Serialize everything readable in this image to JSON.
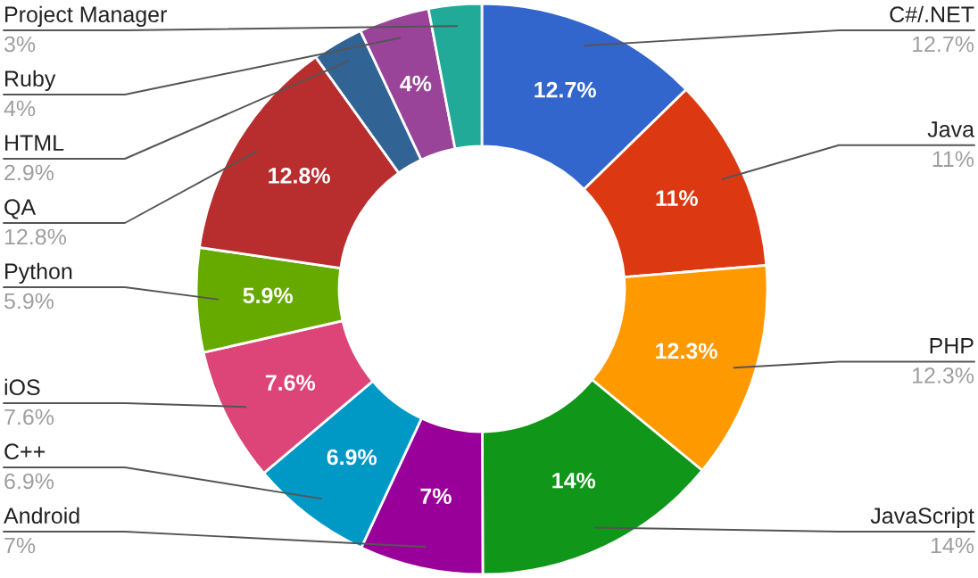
{
  "chart_data": {
    "type": "donut",
    "categories": [
      "C#/.NET",
      "Java",
      "PHP",
      "JavaScript",
      "Android",
      "C++",
      "iOS",
      "Python",
      "QA",
      "HTML",
      "Ruby",
      "Project Manager"
    ],
    "values": [
      12.7,
      11,
      12.3,
      14,
      7,
      6.9,
      7.6,
      5.9,
      12.8,
      2.9,
      4,
      3
    ],
    "colors": [
      "#3366cc",
      "#dc3912",
      "#ff9900",
      "#109618",
      "#990099",
      "#0099c6",
      "#dd4477",
      "#66aa00",
      "#b82e2e",
      "#316395",
      "#994499",
      "#22aa99"
    ],
    "value_labels": [
      "12.7%",
      "11%",
      "12.3%",
      "14%",
      "7%",
      "6.9%",
      "7.6%",
      "5.9%",
      "12.8%",
      "2.9%",
      "4%",
      "3%"
    ]
  }
}
